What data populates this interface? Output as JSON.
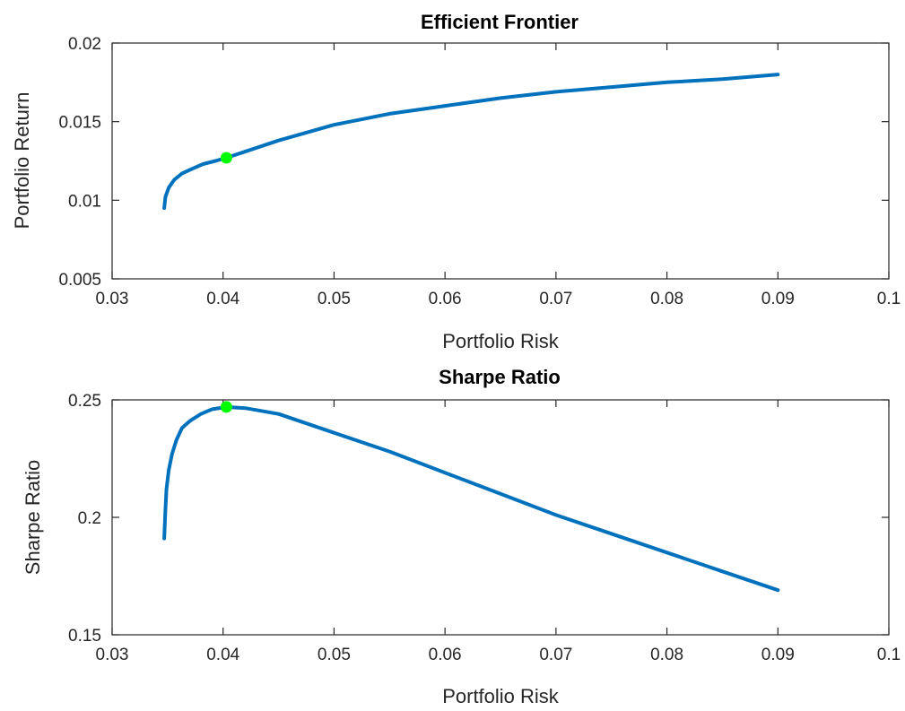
{
  "chart_data": [
    {
      "type": "line",
      "title": "Efficient Frontier",
      "xlabel": "Portfolio Risk",
      "ylabel": "Portfolio Return",
      "xlim": [
        0.03,
        0.1
      ],
      "ylim": [
        0.005,
        0.02
      ],
      "xticks": [
        0.03,
        0.04,
        0.05,
        0.06,
        0.07,
        0.08,
        0.09,
        0.1
      ],
      "xtick_labels": [
        "0.03",
        "0.04",
        "0.05",
        "0.06",
        "0.07",
        "0.08",
        "0.09",
        "0.1"
      ],
      "yticks": [
        0.005,
        0.01,
        0.015,
        0.02
      ],
      "ytick_labels": [
        "0.005",
        "0.01",
        "0.015",
        "0.02"
      ],
      "grid": false,
      "series": [
        {
          "color": "#0072bd",
          "x": [
            0.0347,
            0.0348,
            0.0351,
            0.0356,
            0.0363,
            0.0372,
            0.0382,
            0.0393,
            0.0403,
            0.045,
            0.05,
            0.055,
            0.06,
            0.065,
            0.07,
            0.075,
            0.08,
            0.085,
            0.09
          ],
          "y": [
            0.0095,
            0.0102,
            0.0108,
            0.0113,
            0.0117,
            0.012,
            0.0123,
            0.0125,
            0.0127,
            0.0138,
            0.0148,
            0.0155,
            0.016,
            0.0165,
            0.0169,
            0.0172,
            0.0175,
            0.0177,
            0.018
          ]
        }
      ],
      "highlight": {
        "x": 0.0403,
        "y": 0.0127,
        "color": "#00ff00"
      }
    },
    {
      "type": "line",
      "title": "Sharpe Ratio",
      "xlabel": "Portfolio Risk",
      "ylabel": "Sharpe Ratio",
      "xlim": [
        0.03,
        0.1
      ],
      "ylim": [
        0.15,
        0.25
      ],
      "xticks": [
        0.03,
        0.04,
        0.05,
        0.06,
        0.07,
        0.08,
        0.09,
        0.1
      ],
      "xtick_labels": [
        "0.03",
        "0.04",
        "0.05",
        "0.06",
        "0.07",
        "0.08",
        "0.09",
        "0.1"
      ],
      "yticks": [
        0.15,
        0.2,
        0.25
      ],
      "ytick_labels": [
        "0.15",
        "0.2",
        "0.25"
      ],
      "grid": false,
      "series": [
        {
          "color": "#0072bd",
          "x": [
            0.0347,
            0.0348,
            0.0349,
            0.0351,
            0.0354,
            0.0358,
            0.0363,
            0.037,
            0.038,
            0.039,
            0.0403,
            0.042,
            0.045,
            0.05,
            0.055,
            0.06,
            0.065,
            0.07,
            0.075,
            0.08,
            0.085,
            0.09
          ],
          "y": [
            0.191,
            0.203,
            0.212,
            0.22,
            0.227,
            0.233,
            0.238,
            0.241,
            0.244,
            0.246,
            0.247,
            0.2465,
            0.244,
            0.236,
            0.228,
            0.219,
            0.21,
            0.201,
            0.193,
            0.185,
            0.177,
            0.169
          ]
        }
      ],
      "highlight": {
        "x": 0.0403,
        "y": 0.247,
        "color": "#00ff00"
      }
    }
  ]
}
